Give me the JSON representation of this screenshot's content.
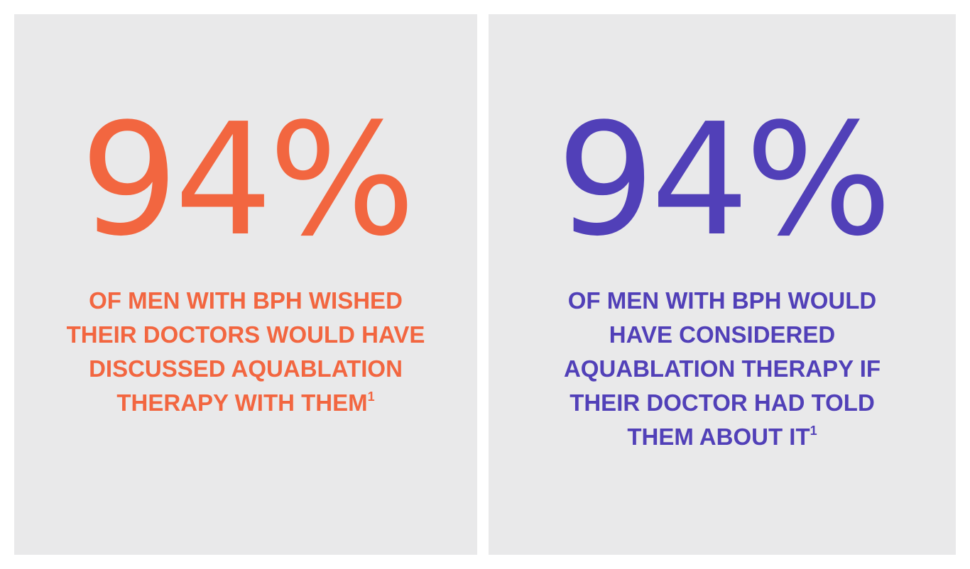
{
  "colors": {
    "orange": "#f26640",
    "purple": "#5140b8",
    "card_background": "#e9e9ea"
  },
  "cards": [
    {
      "stat": "94%",
      "description_lines": [
        "OF MEN WITH BPH WISHED",
        "THEIR DOCTORS WOULD HAVE",
        "DISCUSSED AQUABLATION",
        "THERAPY WITH THEM"
      ],
      "footnote": "1"
    },
    {
      "stat": "94%",
      "description_lines": [
        "OF MEN WITH BPH WOULD",
        "HAVE CONSIDERED",
        "AQUABLATION THERAPY IF",
        "THEIR DOCTOR HAD TOLD",
        "THEM ABOUT IT"
      ],
      "footnote": "1"
    }
  ]
}
